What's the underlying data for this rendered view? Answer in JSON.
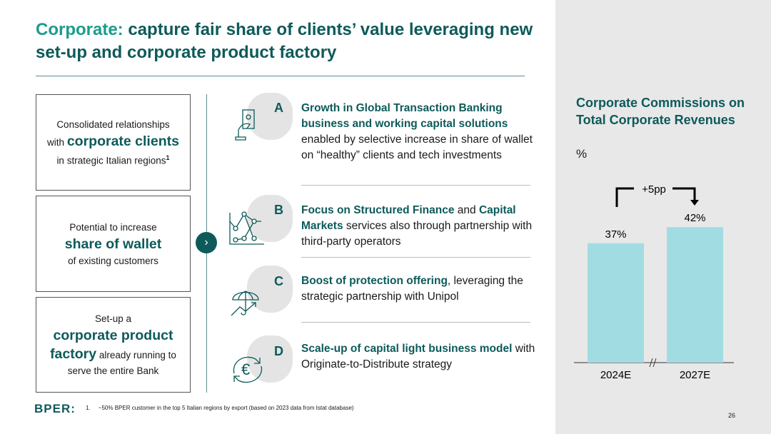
{
  "title": {
    "highlight": "Corporate:",
    "rest": " capture fair share of clients’ value leveraging new set-up and corporate product factory"
  },
  "boxes": [
    {
      "pre": "Consolidated relationships",
      "pre2": "with ",
      "big": "corporate clients",
      "post": "in strategic Italian regions",
      "sup": "1"
    },
    {
      "pre": "Potential to increase",
      "big": "share of wallet",
      "post": "of existing customers"
    },
    {
      "pre": "Set-up a",
      "big": "corporate product",
      "big2": "factory",
      "post": " already running to",
      "post2": "serve the entire Bank"
    }
  ],
  "items": [
    {
      "letter": "A",
      "icon": "money-hand-icon",
      "b1": "Growth in Global Transaction Banking business and working capital solutions",
      "t1": " enabled by selective increase in share of wallet on “healthy” clients and tech investments"
    },
    {
      "letter": "B",
      "icon": "line-chart-icon",
      "b1": "Focus on Structured Finance",
      "t1": " and ",
      "b2": "Capital Markets",
      "t2": " services also through partnership with third-party operators"
    },
    {
      "letter": "C",
      "icon": "umbrella-icon",
      "b1": "Boost of protection offering",
      "t1": ", leveraging the strategic partnership with Unipol"
    },
    {
      "letter": "D",
      "icon": "euro-cycle-icon",
      "b1": "Scale-up of capital light business model",
      "t1": " with Originate-to-Distribute strategy"
    }
  ],
  "chart_data": {
    "type": "bar",
    "title": "Corporate Commissions on Total Corporate Revenues",
    "unit": "%",
    "categories": [
      "2024E",
      "2027E"
    ],
    "values": [
      37,
      42
    ],
    "data_labels": [
      "37%",
      "42%"
    ],
    "annotation": "+5pp",
    "axis_break": true,
    "color": "#a2dce3"
  },
  "footer": {
    "logo": "BPER:",
    "footnote_num": "1.",
    "footnote": "~50% BPER customer in the top 5 Italian regions by export (based on 2023 data from Istat database)",
    "page": "26"
  },
  "colors": {
    "primary": "#0e5a5a",
    "accent": "#1b9c8c",
    "bar": "#a2dce3",
    "panel": "#e8e8e8"
  }
}
